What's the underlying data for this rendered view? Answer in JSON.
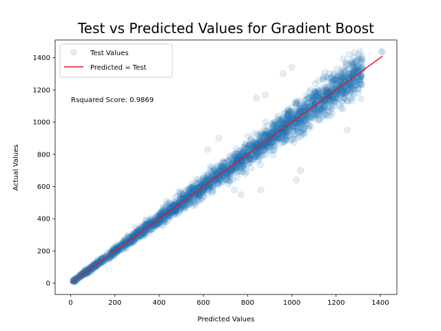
{
  "chart_data": {
    "type": "scatter",
    "title": "Test vs Predicted Values for Gradient Boost",
    "xlabel": "Predicted Values",
    "ylabel": "Actual Values",
    "xlim": [
      -70,
      1475
    ],
    "ylim": [
      -70,
      1510
    ],
    "xticks": [
      0,
      200,
      400,
      600,
      800,
      1000,
      1200,
      1400
    ],
    "yticks": [
      0,
      200,
      400,
      600,
      800,
      1000,
      1200,
      1400
    ],
    "annotation": "Rsquared Score: 0.9869",
    "legend_position": "top-left",
    "series": [
      {
        "name": "Test Values",
        "kind": "scatter",
        "color": "#1f77b4",
        "opacity": 0.12,
        "points": [
          [
            15,
            12
          ],
          [
            30,
            28
          ],
          [
            50,
            52
          ],
          [
            80,
            78
          ],
          [
            110,
            112
          ],
          [
            150,
            148
          ],
          [
            200,
            205
          ],
          [
            250,
            245
          ],
          [
            300,
            305
          ],
          [
            350,
            340
          ],
          [
            400,
            410
          ],
          [
            450,
            440
          ],
          [
            500,
            510
          ],
          [
            520,
            470
          ],
          [
            550,
            560
          ],
          [
            600,
            590
          ],
          [
            620,
            680
          ],
          [
            650,
            640
          ],
          [
            680,
            720
          ],
          [
            700,
            690
          ],
          [
            720,
            780
          ],
          [
            750,
            740
          ],
          [
            780,
            820
          ],
          [
            800,
            790
          ],
          [
            820,
            880
          ],
          [
            850,
            840
          ],
          [
            880,
            920
          ],
          [
            900,
            890
          ],
          [
            920,
            1000
          ],
          [
            950,
            930
          ],
          [
            980,
            1050
          ],
          [
            1000,
            990
          ],
          [
            1020,
            1100
          ],
          [
            1050,
            1030
          ],
          [
            1080,
            1150
          ],
          [
            1100,
            1080
          ],
          [
            1120,
            1200
          ],
          [
            1150,
            1130
          ],
          [
            1180,
            1220
          ],
          [
            1200,
            1180
          ],
          [
            1220,
            1260
          ],
          [
            1250,
            1230
          ],
          [
            1280,
            1300
          ],
          [
            1300,
            1280
          ],
          [
            1310,
            1320
          ],
          [
            1405,
            1440
          ],
          [
            1410,
            1435
          ],
          [
            840,
            1150
          ],
          [
            880,
            1170
          ],
          [
            1020,
            640
          ],
          [
            1040,
            700
          ],
          [
            960,
            1300
          ],
          [
            1000,
            1340
          ],
          [
            770,
            550
          ],
          [
            740,
            580
          ],
          [
            670,
            900
          ],
          [
            620,
            830
          ],
          [
            1250,
            950
          ],
          [
            860,
            580
          ],
          [
            1150,
            1310
          ]
        ]
      },
      {
        "name": "Predicted = Test",
        "kind": "line",
        "color": "#e41a1c",
        "x": [
          0,
          1410
        ],
        "y": [
          0,
          1410
        ]
      }
    ]
  }
}
